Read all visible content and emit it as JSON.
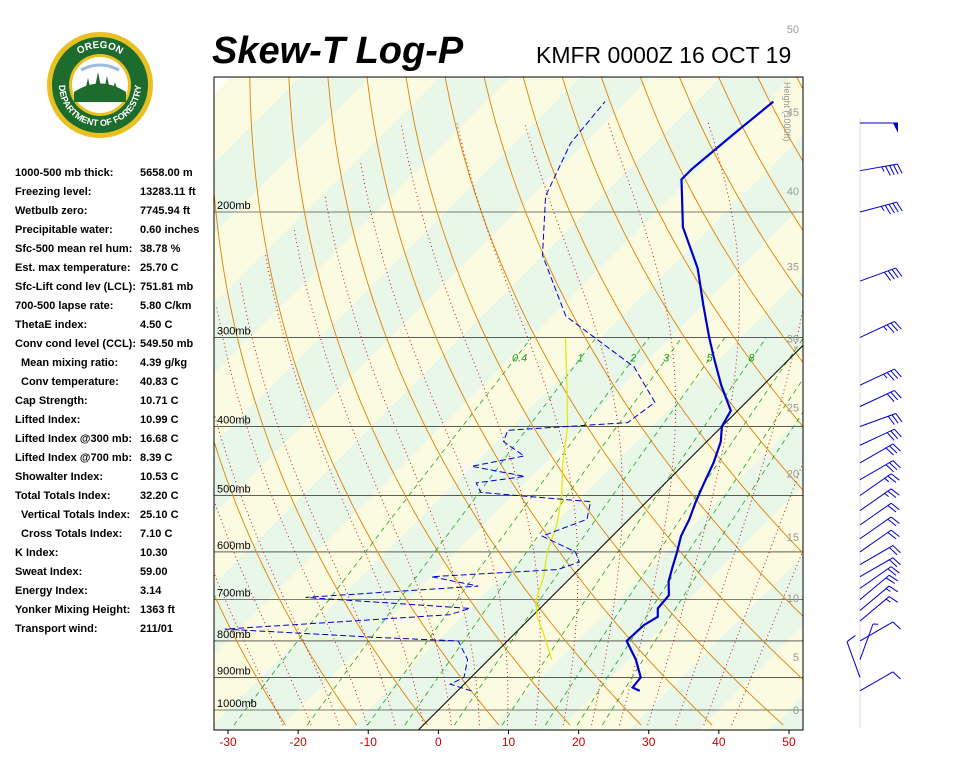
{
  "header": {
    "title": "Skew-T Log-P",
    "subtitle": "KMFR 0000Z 16 OCT 19"
  },
  "logo": {
    "top_text": "OREGON",
    "bottom_text": "DEPARTMENT OF FORESTRY",
    "ring_color": "#1e6b2e",
    "gold_color": "#e8c020"
  },
  "stats": [
    {
      "label": "1000-500 mb thick:",
      "value": "5658.00 m"
    },
    {
      "label": "Freezing level:",
      "value": "13283.11 ft"
    },
    {
      "label": "Wetbulb zero:",
      "value": "7745.94 ft"
    },
    {
      "label": "Precipitable water:",
      "value": "0.60 inches"
    },
    {
      "label": "Sfc-500 mean rel hum:",
      "value": "38.78 %"
    },
    {
      "label": "Est. max temperature:",
      "value": "25.70 C"
    },
    {
      "label": "Sfc-Lift cond lev (LCL):",
      "value": "751.81 mb"
    },
    {
      "label": "700-500 lapse rate:",
      "value": "5.80 C/km"
    },
    {
      "label": "ThetaE index:",
      "value": "4.50 C"
    },
    {
      "label": "Conv cond level (CCL):",
      "value": "549.50 mb"
    },
    {
      "label": "Mean mixing ratio:",
      "value": "4.39 g/kg",
      "indent": true
    },
    {
      "label": "Conv temperature:",
      "value": "40.83 C",
      "indent": true
    },
    {
      "label": "Cap Strength:",
      "value": "10.71 C"
    },
    {
      "label": "Lifted Index:",
      "value": "10.99 C"
    },
    {
      "label": "Lifted Index @300 mb:",
      "value": "16.68 C"
    },
    {
      "label": "Lifted Index @700 mb:",
      "value": "8.39 C"
    },
    {
      "label": "Showalter Index:",
      "value": "10.53 C"
    },
    {
      "label": "Total Totals Index:",
      "value": "32.20 C"
    },
    {
      "label": "Vertical Totals Index:",
      "value": "25.10 C",
      "indent": true
    },
    {
      "label": "Cross Totals Index:",
      "value": "7.10 C",
      "indent": true
    },
    {
      "label": "K Index:",
      "value": "10.30"
    },
    {
      "label": "Sweat Index:",
      "value": "59.00"
    },
    {
      "label": "Energy Index:",
      "value": "3.14"
    },
    {
      "label": "Yonker Mixing Height:",
      "value": "1363 ft"
    },
    {
      "label": "Transport wind:",
      "value": "211/01"
    }
  ],
  "chart_data": {
    "type": "line",
    "xlim": [
      -32,
      52
    ],
    "x_ticks": [
      -30,
      -20,
      -10,
      0,
      10,
      20,
      30,
      40,
      50
    ],
    "pressure_levels": [
      {
        "p": 200,
        "label": "200mb"
      },
      {
        "p": 300,
        "label": "300mb"
      },
      {
        "p": 400,
        "label": "400mb"
      },
      {
        "p": 500,
        "label": "500mb"
      },
      {
        "p": 600,
        "label": "600mb"
      },
      {
        "p": 700,
        "label": "700mb"
      },
      {
        "p": 800,
        "label": "800mb"
      },
      {
        "p": 900,
        "label": "900mb"
      },
      {
        "p": 1000,
        "label": "1000mb"
      }
    ],
    "height_axis_label": "Height (1000ft)",
    "height_ticks": [
      0,
      5,
      10,
      15,
      20,
      25,
      30,
      35,
      40,
      45,
      50
    ],
    "mixing_ratio_labels": [
      "0.4",
      "1",
      "2",
      "3",
      "5",
      "8"
    ],
    "colors": {
      "temperature": "#0000cc",
      "dewpoint": "#0000cc",
      "parcel": "#e6e600",
      "isotherm": "#000000",
      "dry_adiabat": "#e08000",
      "moist_adiabat": "#c00000",
      "mixing_ratio": "#20a020",
      "axis_labels": "#cc0000",
      "wind_barbs": "#0000cc"
    },
    "temperature": [
      {
        "p": 940,
        "t": 26.0
      },
      {
        "p": 930,
        "t": 24.5
      },
      {
        "p": 900,
        "t": 24.2
      },
      {
        "p": 850,
        "t": 21.0
      },
      {
        "p": 800,
        "t": 17.0
      },
      {
        "p": 760,
        "t": 17.2
      },
      {
        "p": 740,
        "t": 18.0
      },
      {
        "p": 720,
        "t": 16.8
      },
      {
        "p": 690,
        "t": 16.5
      },
      {
        "p": 660,
        "t": 14.5
      },
      {
        "p": 630,
        "t": 13.0
      },
      {
        "p": 600,
        "t": 11.5
      },
      {
        "p": 570,
        "t": 9.8
      },
      {
        "p": 540,
        "t": 8.6
      },
      {
        "p": 510,
        "t": 7.0
      },
      {
        "p": 480,
        "t": 5.5
      },
      {
        "p": 450,
        "t": 4.0
      },
      {
        "p": 420,
        "t": 2.0
      },
      {
        "p": 400,
        "t": 0.0
      },
      {
        "p": 380,
        "t": -1.0
      },
      {
        "p": 350,
        "t": -6.0
      },
      {
        "p": 320,
        "t": -11.0
      },
      {
        "p": 300,
        "t": -14.5
      },
      {
        "p": 270,
        "t": -20.0
      },
      {
        "p": 240,
        "t": -26.0
      },
      {
        "p": 210,
        "t": -34.0
      },
      {
        "p": 180,
        "t": -41.0
      },
      {
        "p": 174,
        "t": -41.0
      },
      {
        "p": 155,
        "t": -40.0
      },
      {
        "p": 140,
        "t": -39.0
      }
    ],
    "dewpoint": [
      {
        "p": 940,
        "t": 2.0
      },
      {
        "p": 920,
        "t": -2.0
      },
      {
        "p": 900,
        "t": -1.0
      },
      {
        "p": 850,
        "t": -3.0
      },
      {
        "p": 800,
        "t": -7.0
      },
      {
        "p": 790,
        "t": -20.0
      },
      {
        "p": 770,
        "t": -42.0
      },
      {
        "p": 750,
        "t": -25.0
      },
      {
        "p": 735,
        "t": -12.0
      },
      {
        "p": 720,
        "t": -10.0
      },
      {
        "p": 695,
        "t": -35.0
      },
      {
        "p": 670,
        "t": -12.0
      },
      {
        "p": 650,
        "t": -20.0
      },
      {
        "p": 635,
        "t": -3.0
      },
      {
        "p": 620,
        "t": -1.0
      },
      {
        "p": 600,
        "t": -3.0
      },
      {
        "p": 570,
        "t": -10.0
      },
      {
        "p": 540,
        "t": -6.0
      },
      {
        "p": 510,
        "t": -8.0
      },
      {
        "p": 495,
        "t": -25.0
      },
      {
        "p": 480,
        "t": -27.0
      },
      {
        "p": 470,
        "t": -21.0
      },
      {
        "p": 455,
        "t": -30.0
      },
      {
        "p": 440,
        "t": -24.0
      },
      {
        "p": 420,
        "t": -29.0
      },
      {
        "p": 405,
        "t": -30.0
      },
      {
        "p": 395,
        "t": -14.0
      },
      {
        "p": 370,
        "t": -13.0
      },
      {
        "p": 330,
        "t": -21.0
      },
      {
        "p": 280,
        "t": -38.0
      },
      {
        "p": 230,
        "t": -50.0
      },
      {
        "p": 190,
        "t": -58.0
      },
      {
        "p": 160,
        "t": -62.0
      },
      {
        "p": 140,
        "t": -63.0
      }
    ],
    "parcel": [
      {
        "p": 850,
        "t": 9.0
      },
      {
        "p": 780,
        "t": 4.0
      },
      {
        "p": 740,
        "t": 0.8
      },
      {
        "p": 700,
        "t": -1.8
      },
      {
        "p": 650,
        "t": -4.0
      },
      {
        "p": 600,
        "t": -7.0
      },
      {
        "p": 550,
        "t": -9.5
      },
      {
        "p": 500,
        "t": -13.0
      },
      {
        "p": 450,
        "t": -17.5
      },
      {
        "p": 400,
        "t": -22.0
      },
      {
        "p": 350,
        "t": -28.0
      },
      {
        "p": 300,
        "t": -35.0
      }
    ],
    "wind_barbs": [
      {
        "p": 150,
        "dir": 270,
        "spd": 50
      },
      {
        "p": 175,
        "dir": 260,
        "spd": 45
      },
      {
        "p": 200,
        "dir": 255,
        "spd": 45
      },
      {
        "p": 250,
        "dir": 250,
        "spd": 40
      },
      {
        "p": 300,
        "dir": 245,
        "spd": 35
      },
      {
        "p": 350,
        "dir": 245,
        "spd": 35
      },
      {
        "p": 375,
        "dir": 245,
        "spd": 30
      },
      {
        "p": 400,
        "dir": 250,
        "spd": 30
      },
      {
        "p": 425,
        "dir": 245,
        "spd": 30
      },
      {
        "p": 450,
        "dir": 240,
        "spd": 30
      },
      {
        "p": 475,
        "dir": 240,
        "spd": 30
      },
      {
        "p": 500,
        "dir": 235,
        "spd": 25
      },
      {
        "p": 525,
        "dir": 235,
        "spd": 25
      },
      {
        "p": 550,
        "dir": 235,
        "spd": 20
      },
      {
        "p": 575,
        "dir": 235,
        "spd": 20
      },
      {
        "p": 600,
        "dir": 235,
        "spd": 20
      },
      {
        "p": 625,
        "dir": 240,
        "spd": 20
      },
      {
        "p": 650,
        "dir": 240,
        "spd": 20
      },
      {
        "p": 675,
        "dir": 235,
        "spd": 20
      },
      {
        "p": 700,
        "dir": 230,
        "spd": 20
      },
      {
        "p": 725,
        "dir": 230,
        "spd": 15
      },
      {
        "p": 750,
        "dir": 230,
        "spd": 15
      },
      {
        "p": 800,
        "dir": 240,
        "spd": 10
      },
      {
        "p": 850,
        "dir": 200,
        "spd": 5
      },
      {
        "p": 900,
        "dir": 160,
        "spd": 10
      },
      {
        "p": 940,
        "dir": 240,
        "spd": 10
      }
    ]
  }
}
